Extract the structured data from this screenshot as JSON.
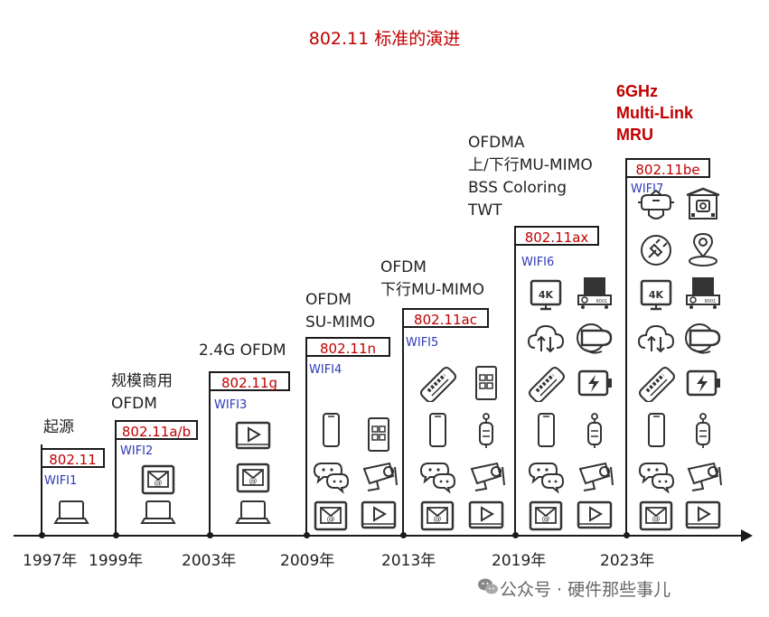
{
  "title": "802.11 标准的演进",
  "generations": [
    {
      "standard": "802.11",
      "wifi": "WIFI1",
      "features": "起源",
      "feature_highlight": false
    },
    {
      "standard": "802.11a/b",
      "wifi": "WIFI2",
      "features": "规模商用\nOFDM",
      "feature_highlight": false
    },
    {
      "standard": "802.11g",
      "wifi": "WIFI3",
      "features": "2.4G OFDM",
      "feature_highlight": false
    },
    {
      "standard": "802.11n",
      "wifi": "WIFI4",
      "features": "OFDM\nSU-MIMO",
      "feature_highlight": false
    },
    {
      "standard": "802.11ac",
      "wifi": "WIFI5",
      "features": "OFDM\n下行MU-MIMO",
      "feature_highlight": false
    },
    {
      "standard": "802.11ax",
      "wifi": "WIFI6",
      "features": "OFDMA\n上/下行MU-MIMO\nBSS Coloring\nTWT",
      "feature_highlight": false
    },
    {
      "standard": "802.11be",
      "wifi": "WIFI7",
      "features": "6GHz\nMulti-Link\nMRU",
      "feature_highlight": true
    }
  ],
  "years": [
    "1997年",
    "1999年",
    "2003年",
    "2009年",
    "2013年",
    "2019年",
    "2023年"
  ],
  "watermark": "公众号 · 硬件那些事儿",
  "icon_legend": [
    "laptop-icon",
    "mail-icon",
    "video-icon",
    "phone-icon",
    "tablet-icon",
    "chat-icon",
    "camera-icon",
    "pos-icon",
    "vehicle-icon",
    "tv-4k-icon",
    "cloud-icon",
    "vr-icon",
    "battery-icon",
    "box-icon",
    "plug-icon",
    "location-icon",
    "robot-icon",
    "home-icon"
  ],
  "colors": {
    "accent": "#c00000",
    "wifi_label": "#2c3ab8",
    "line": "#1a1a1a"
  }
}
